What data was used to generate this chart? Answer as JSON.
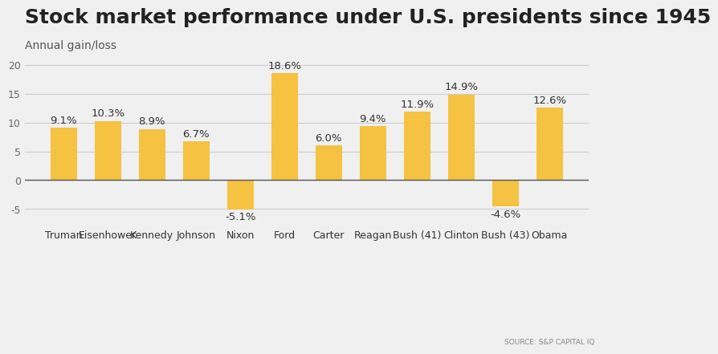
{
  "title": "Stock market performance under U.S. presidents since 1945",
  "subtitle": "Annual gain/loss",
  "source": "SOURCE: S&P CAPITAL IQ",
  "presidents": [
    "Truman",
    "Eisenhower",
    "Kennedy",
    "Johnson",
    "Nixon",
    "Ford",
    "Carter",
    "Reagan",
    "Bush (41)",
    "Clinton",
    "Bush (43)",
    "Obama"
  ],
  "values": [
    9.1,
    10.3,
    8.9,
    6.7,
    -5.1,
    18.6,
    6.0,
    9.4,
    11.9,
    14.9,
    -4.6,
    12.6
  ],
  "bar_color": "#F5C242",
  "background_color": "#F0F0F0",
  "ylim": [
    -8,
    22
  ],
  "yticks": [
    -5,
    0,
    5,
    10,
    15,
    20
  ],
  "title_fontsize": 18,
  "subtitle_fontsize": 10,
  "value_fontsize": 9.5,
  "label_fontsize": 9,
  "zero_line_color": "#555555"
}
